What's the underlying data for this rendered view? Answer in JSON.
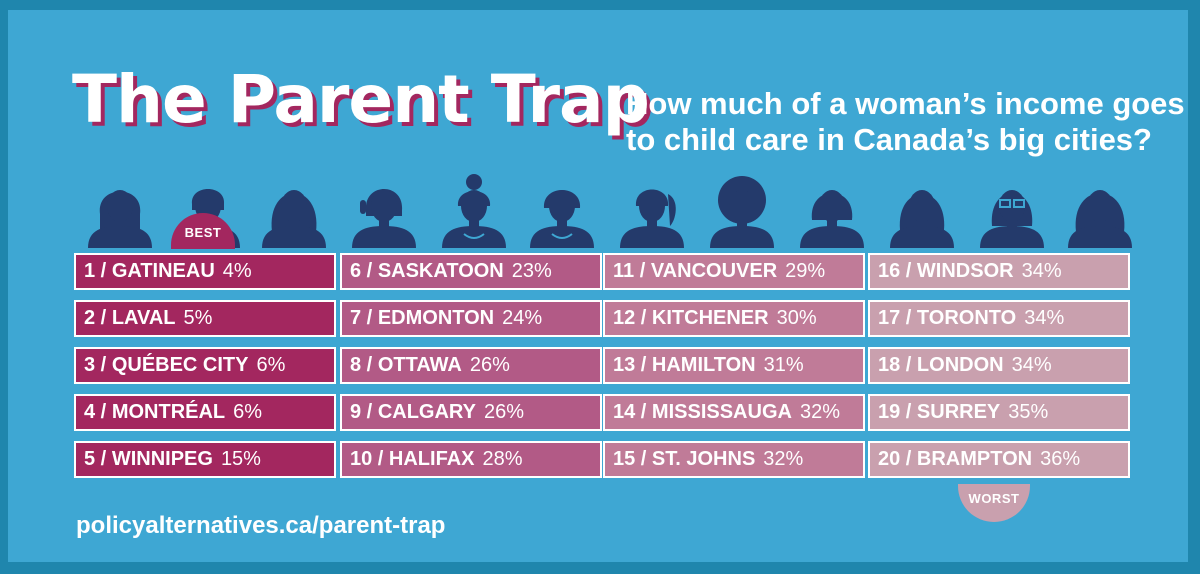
{
  "title": "The Parent Trap",
  "subtitle": "How much of a woman’s income goes to child care in Canada’s big cities?",
  "best_label": "BEST",
  "worst_label": "WORST",
  "footer_url": "policyalternatives.ca/parent-trap",
  "colors": {
    "frame": "#1f86ad",
    "background": "#3ea7d3",
    "title_shadow": "#a3275f",
    "silhouette": "#243a6b",
    "column_colors": [
      "#a3275f",
      "#b25a86",
      "#c07b98",
      "#c9a0ae"
    ]
  },
  "avatar_icons": [
    "woman-bangs-icon",
    "woman-short-hair-icon",
    "woman-long-hair-icon",
    "woman-headset-icon",
    "woman-bun-icon",
    "woman-necklace-icon",
    "woman-ponytail-icon",
    "woman-afro-icon",
    "woman-bob-icon",
    "woman-long-bangs-icon",
    "woman-glasses-icon",
    "woman-wavy-hair-icon"
  ],
  "columns": [
    {
      "rows": [
        {
          "rank": "1 /",
          "city": "GATINEAU",
          "pct": "4%"
        },
        {
          "rank": "2 /",
          "city": "LAVAL",
          "pct": "5%"
        },
        {
          "rank": "3 /",
          "city": "QUÉBEC CITY",
          "pct": "6%"
        },
        {
          "rank": "4 /",
          "city": "MONTRÉAL",
          "pct": "6%"
        },
        {
          "rank": "5 /",
          "city": "WINNIPEG",
          "pct": "15%"
        }
      ]
    },
    {
      "rows": [
        {
          "rank": "6 /",
          "city": "SASKATOON",
          "pct": "23%"
        },
        {
          "rank": "7 /",
          "city": "EDMONTON",
          "pct": "24%"
        },
        {
          "rank": "8 /",
          "city": "OTTAWA",
          "pct": "26%"
        },
        {
          "rank": "9 /",
          "city": "CALGARY",
          "pct": "26%"
        },
        {
          "rank": "10 /",
          "city": "HALIFAX",
          "pct": "28%"
        }
      ]
    },
    {
      "rows": [
        {
          "rank": "11 /",
          "city": "VANCOUVER",
          "pct": "29%"
        },
        {
          "rank": "12 /",
          "city": "KITCHENER",
          "pct": "30%"
        },
        {
          "rank": "13 /",
          "city": "HAMILTON",
          "pct": "31%"
        },
        {
          "rank": "14 /",
          "city": "MISSISSAUGA",
          "pct": "32%"
        },
        {
          "rank": "15 /",
          "city": "ST. JOHNS",
          "pct": "32%"
        }
      ]
    },
    {
      "rows": [
        {
          "rank": "16 /",
          "city": "WINDSOR",
          "pct": "34%"
        },
        {
          "rank": "17 /",
          "city": "TORONTO",
          "pct": "34%"
        },
        {
          "rank": "18 /",
          "city": "LONDON",
          "pct": "34%"
        },
        {
          "rank": "19 /",
          "city": "SURREY",
          "pct": "35%"
        },
        {
          "rank": "20 /",
          "city": "BRAMPTON",
          "pct": "36%"
        }
      ]
    }
  ]
}
